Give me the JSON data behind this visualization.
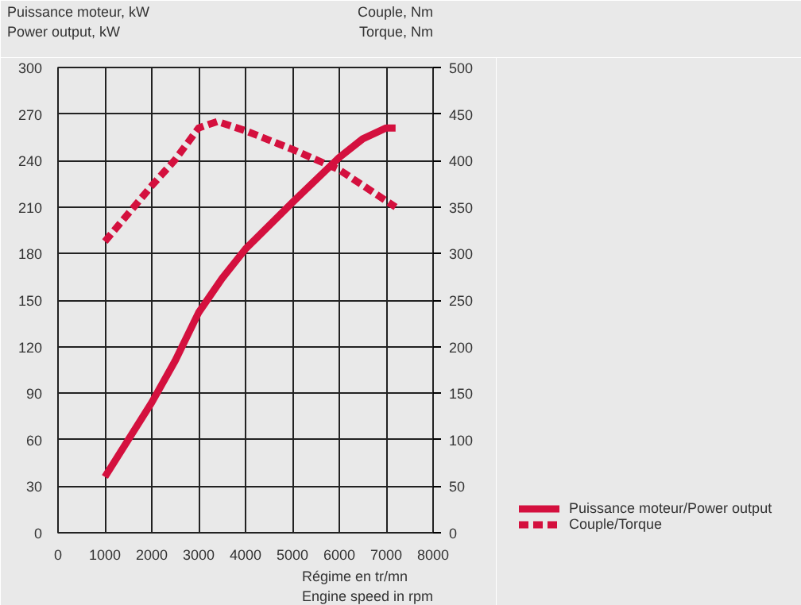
{
  "chart_data": {
    "type": "line",
    "xlabel": "Régime en tr/mn\nEngine speed in rpm",
    "ylabel": "Puissance moteur, kW\nPower output, kW",
    "y2label": "Couple, Nm\nTorque, Nm",
    "series": [
      {
        "name": "Puissance moteur/Power output",
        "color": "#d4103e",
        "line_style": "solid",
        "x": [
          1000,
          2000,
          2500,
          3000,
          3500,
          4000,
          5000,
          6000,
          6500,
          7000,
          7200
        ],
        "values": [
          36,
          84,
          111,
          142,
          164,
          183,
          213,
          242,
          254,
          261,
          261
        ]
      },
      {
        "name": "Couple/Torque",
        "color": "#d4103e",
        "line_style": "dashed",
        "axis": "y2",
        "x": [
          1000,
          2000,
          2500,
          3000,
          3400,
          4000,
          5000,
          6000,
          7200
        ],
        "values": [
          313,
          373,
          401,
          435,
          442,
          432,
          412,
          390,
          350
        ]
      }
    ],
    "xlim": [
      0,
      8000
    ],
    "xticks": [
      0,
      1000,
      2000,
      3000,
      4000,
      5000,
      6000,
      7000,
      8000
    ],
    "ylim": [
      0,
      300
    ],
    "yticks": [
      0,
      30,
      60,
      90,
      120,
      150,
      180,
      210,
      240,
      270,
      300
    ],
    "y2lim": [
      0,
      500
    ],
    "y2ticks": [
      0,
      50,
      100,
      150,
      200,
      250,
      300,
      350,
      400,
      450,
      500
    ],
    "grid": true,
    "legend": "bottom right"
  }
}
